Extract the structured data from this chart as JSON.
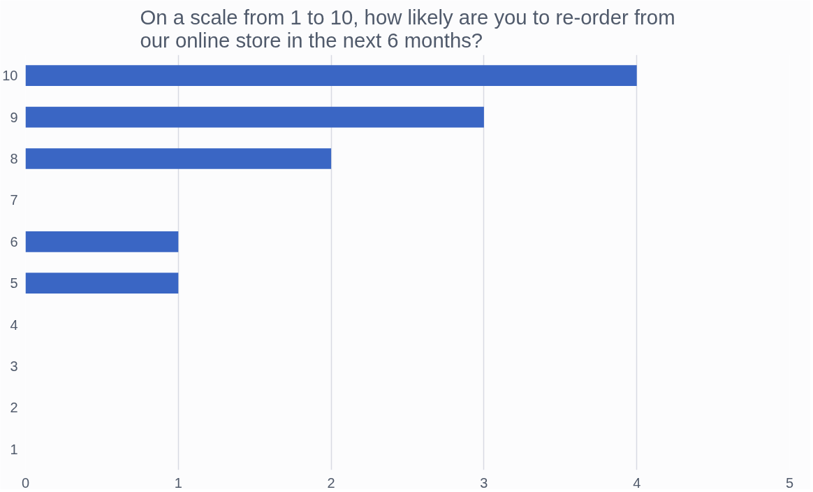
{
  "chart_data": {
    "type": "bar",
    "orientation": "horizontal",
    "title": "On a scale from 1 to 10, how likely are you to re-order from\nour online store in the next 6 months?",
    "categories": [
      "10",
      "9",
      "8",
      "7",
      "6",
      "5",
      "4",
      "3",
      "2",
      "1"
    ],
    "values": [
      4,
      3,
      2,
      0,
      1,
      1,
      0,
      0,
      0,
      0
    ],
    "color": "#3a66c4",
    "xlim": [
      0,
      5
    ],
    "xticks": [
      0,
      1,
      2,
      3,
      4,
      5
    ],
    "grid": "x"
  }
}
